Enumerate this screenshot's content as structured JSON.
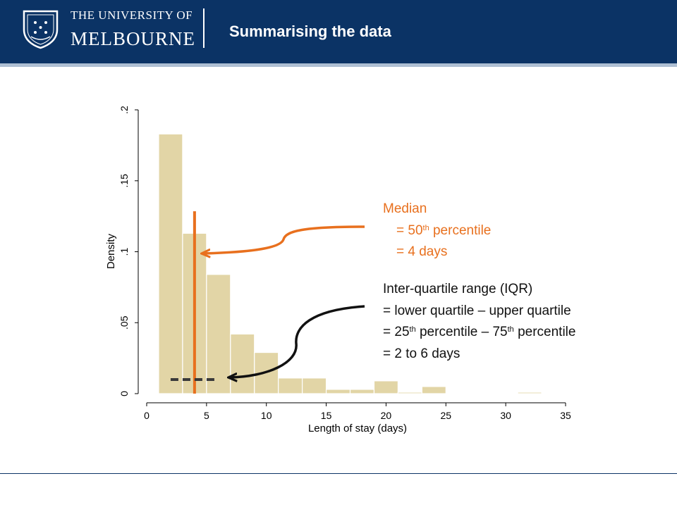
{
  "header": {
    "university_line1": "THE UNIVERSITY OF",
    "university_line2": "MELBOURNE",
    "slide_title": "Summarising the data"
  },
  "colors": {
    "header_bg": "#0b3365",
    "bar_fill": "#e2d5a6",
    "median_line": "#e8701e",
    "iqr_annotation": "#111111"
  },
  "chart_data": {
    "type": "bar",
    "xlabel": "Length of stay (days)",
    "ylabel": "Density",
    "xlim": [
      0,
      35
    ],
    "ylim": [
      0,
      0.2
    ],
    "x_ticks": [
      0,
      5,
      10,
      15,
      20,
      25,
      30,
      35
    ],
    "x_tick_labels": [
      "0",
      "5",
      "10",
      "15",
      "20",
      "25",
      "30",
      "35"
    ],
    "y_ticks": [
      0,
      0.05,
      0.1,
      0.15,
      0.2
    ],
    "y_tick_labels": [
      "0",
      ".05",
      ".1",
      ".15",
      ".2"
    ],
    "grid": false,
    "bin_width": 2,
    "bins": [
      {
        "start": 1,
        "value": 0.183
      },
      {
        "start": 3,
        "value": 0.113
      },
      {
        "start": 5,
        "value": 0.084
      },
      {
        "start": 7,
        "value": 0.042
      },
      {
        "start": 9,
        "value": 0.029
      },
      {
        "start": 11,
        "value": 0.011
      },
      {
        "start": 13,
        "value": 0.011
      },
      {
        "start": 15,
        "value": 0.003
      },
      {
        "start": 17,
        "value": 0.003
      },
      {
        "start": 19,
        "value": 0.009
      },
      {
        "start": 21,
        "value": 0.001
      },
      {
        "start": 23,
        "value": 0.005
      },
      {
        "start": 25,
        "value": 0
      },
      {
        "start": 27,
        "value": 0
      },
      {
        "start": 29,
        "value": 0
      },
      {
        "start": 31,
        "value": 0.001
      },
      {
        "start": 33,
        "value": 0
      }
    ],
    "median": 4,
    "iqr": [
      2,
      6
    ]
  },
  "annotations": {
    "median_line1": "Median",
    "median_line2_pre": "= 50",
    "median_line2_sup": "th",
    "median_line2_post": " percentile",
    "median_line3": "= 4 days",
    "iqr_line1": "Inter-quartile range (IQR)",
    "iqr_line2": "= lower quartile – upper quartile",
    "iqr_line3_a": "= 25",
    "iqr_line3_sup1": "th",
    "iqr_line3_b": " percentile – 75",
    "iqr_line3_sup2": "th",
    "iqr_line3_c": " percentile",
    "iqr_line4": "= 2 to 6 days"
  }
}
